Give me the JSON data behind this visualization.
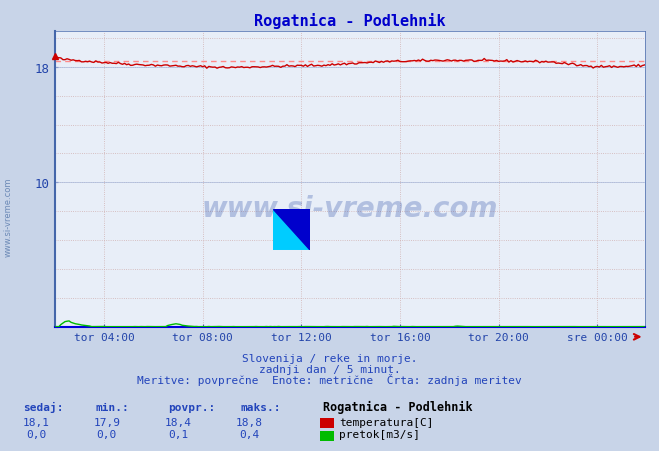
{
  "title": "Rogatnica - Podlehnik",
  "title_color": "#0000cc",
  "bg_color": "#c8d4e8",
  "plot_bg_color": "#e8eef8",
  "grid_color": "#b8c8d8",
  "grid_color_v": "#d0a0a0",
  "x_tick_labels": [
    "tor 04:00",
    "tor 08:00",
    "tor 12:00",
    "tor 16:00",
    "tor 20:00",
    "sre 00:00"
  ],
  "ytick_labels": [
    "",
    "10",
    "18"
  ],
  "ytick_vals": [
    0,
    10,
    18
  ],
  "ylim": [
    0,
    20.5
  ],
  "xlim": [
    0,
    287
  ],
  "temp_color": "#cc0000",
  "flow_color": "#00bb00",
  "avg_line_color": "#ff8888",
  "temp_avg": 18.4,
  "temp_min": 17.9,
  "temp_max": 18.8,
  "temp_current": 18.1,
  "flow_avg": 0.1,
  "flow_min": 0.0,
  "flow_max": 0.4,
  "flow_current": 0.0,
  "footer_line1": "Slovenija / reke in morje.",
  "footer_line2": "zadnji dan / 5 minut.",
  "footer_line3": "Meritve: povprečne  Enote: metrične  Črta: zadnja meritev",
  "legend_title": "Rogatnica - Podlehnik",
  "label_sedaj": "sedaj:",
  "label_min": "min.:",
  "label_povpr": "povpr.:",
  "label_maks": "maks.:",
  "label_temp": "temperatura[C]",
  "label_flow": "pretok[m3/s]",
  "n_points": 288,
  "watermark": "www.si-vreme.com"
}
